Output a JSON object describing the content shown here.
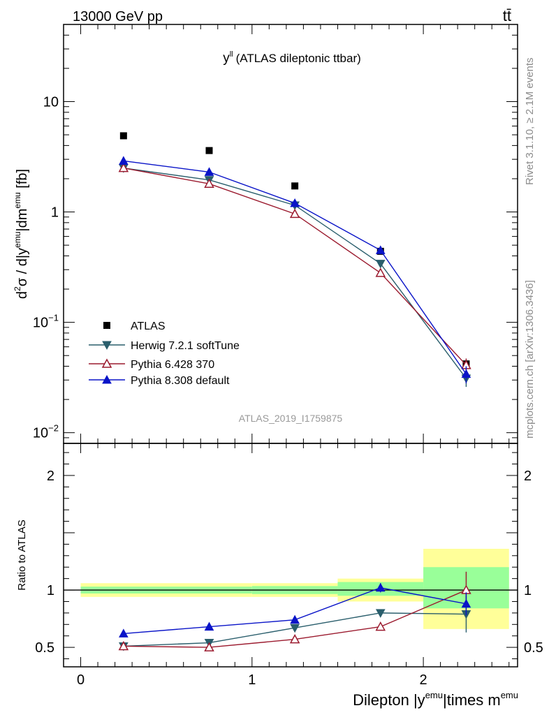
{
  "header": {
    "energy": "13000 GeV pp",
    "process": "tt̄"
  },
  "side_labels": {
    "rivet": "Rivet 3.1.10, ≥ 2.1M events",
    "source": "mcplots.cern.ch [arXiv:1306.3436]"
  },
  "chart_data": [
    {
      "type": "scatter",
      "title_main": "y",
      "title_sup": "ll",
      "title_rest": "(ATLAS dileptonic ttbar)",
      "watermark": "ATLAS_2019_I1759875",
      "ylabel": "d²σ / d|y^emu|dm^emu [fb]",
      "yscale": "log",
      "ylim": [
        0.008,
        50
      ],
      "xlim": [
        -0.1,
        2.55
      ],
      "x": [
        0.25,
        0.75,
        1.25,
        1.75,
        2.25
      ],
      "legend_position": "bottom-left",
      "series": [
        {
          "name": "ATLAS",
          "marker": "square",
          "color": "#000000",
          "values": [
            4.9,
            3.6,
            1.72,
            0.44,
            0.042
          ],
          "err": [
            0,
            0,
            0,
            0,
            0.004
          ]
        },
        {
          "name": "Herwig 7.2.1 softTune",
          "marker": "triangle-down",
          "color": "#2a5e6c",
          "values": [
            2.5,
            1.95,
            1.15,
            0.34,
            0.031
          ],
          "err": [
            0,
            0,
            0,
            0,
            0.005
          ]
        },
        {
          "name": "Pythia 6.428 370",
          "marker": "triangle-up-open",
          "color": "#9b1a2e",
          "values": [
            2.5,
            1.8,
            0.96,
            0.28,
            0.041
          ],
          "err": [
            0,
            0,
            0,
            0,
            0.006
          ]
        },
        {
          "name": "Pythia 8.308 default",
          "marker": "triangle-up",
          "color": "#0a14c8",
          "values": [
            2.9,
            2.3,
            1.2,
            0.45,
            0.034
          ],
          "err": [
            0,
            0,
            0,
            0,
            0.006
          ]
        }
      ]
    },
    {
      "type": "scatter",
      "ylabel": "Ratio to ATLAS",
      "xlabel_main": "Dilepton |y",
      "xlabel_sup1": "emu",
      "xlabel_mid": "|times m",
      "xlabel_sup2": "emu",
      "ylim": [
        0.33,
        2.28
      ],
      "xlim": [
        -0.1,
        2.55
      ],
      "bands": [
        {
          "x0": 0.0,
          "x1": 1.0,
          "yellow": [
            0.94,
            1.06
          ],
          "green": [
            0.97,
            1.03
          ]
        },
        {
          "x0": 1.0,
          "x1": 1.5,
          "yellow": [
            0.94,
            1.06
          ],
          "green": [
            0.965,
            1.035
          ]
        },
        {
          "x0": 1.5,
          "x1": 2.0,
          "yellow": [
            0.9,
            1.1
          ],
          "green": [
            0.95,
            1.07
          ]
        },
        {
          "x0": 2.0,
          "x1": 2.5,
          "yellow": [
            0.66,
            1.36
          ],
          "green": [
            0.84,
            1.2
          ]
        }
      ],
      "x": [
        0.25,
        0.75,
        1.25,
        1.75,
        2.25
      ],
      "series": [
        {
          "name": "Herwig 7.2.1 softTune",
          "values": [
            0.51,
            0.54,
            0.67,
            0.8,
            0.79
          ],
          "err": [
            0,
            0,
            0.015,
            0.03,
            0.16
          ]
        },
        {
          "name": "Pythia 6.428 370",
          "values": [
            0.51,
            0.5,
            0.57,
            0.68,
            1.0
          ],
          "err": [
            0,
            0,
            0.015,
            0.03,
            0.16
          ]
        },
        {
          "name": "Pythia 8.308 default",
          "values": [
            0.62,
            0.68,
            0.74,
            1.02,
            0.88
          ],
          "err": [
            0,
            0.015,
            0.02,
            0.04,
            0.1
          ]
        }
      ]
    }
  ]
}
